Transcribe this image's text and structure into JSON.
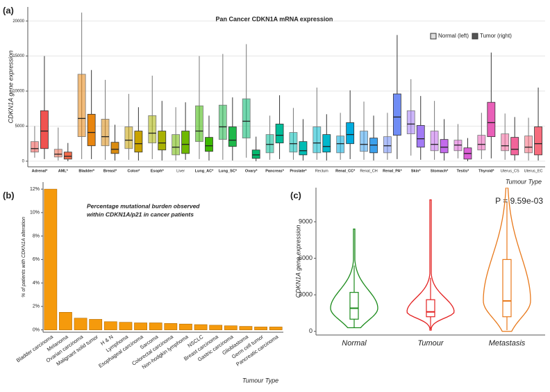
{
  "chart_data": [
    {
      "type": "boxplot",
      "panel": "(a)",
      "title": "Pan Cancer CDKN1A mRNA expression",
      "y_label": "CDKN1A gene expression",
      "x_label": "Tumour Type",
      "categories": [
        "Adrenal*",
        "AML*",
        "Bladder*",
        "Breast*",
        "Colon*",
        "Esoph*",
        "Liver",
        "Lung_AC*",
        "Lung_SC*",
        "Ovary*",
        "Pancreas*",
        "Prostate*",
        "Rectum",
        "Renal_CC*",
        "Renal_CH",
        "Renal_PA*",
        "Skin*",
        "Stomach*",
        "Testis*",
        "Thyroid*",
        "Uterus_CS",
        "Uterus_EC"
      ],
      "category_colors": [
        "#ef5350",
        "#f06a4a",
        "#e8850f",
        "#d98b10",
        "#c9a300",
        "#a9b200",
        "#6fb800",
        "#3cb800",
        "#1eb84a",
        "#00b86e",
        "#00bc98",
        "#00bcb4",
        "#00b8cc",
        "#00acdf",
        "#3ca0ec",
        "#6f8cf5",
        "#a27af5",
        "#c36bec",
        "#dc5fd6",
        "#e95fb8",
        "#f2649a",
        "#f76c7d"
      ],
      "category_label_colors": [
        "#e0201b",
        "#e0201b",
        "#e0201b",
        "#e0201b",
        "#e0201b",
        "#e0201b",
        "#222222",
        "#e0201b",
        "#e0201b",
        "#e0201b",
        "#e0201b",
        "#e0201b",
        "#222222",
        "#e0201b",
        "#222222",
        "#e0201b",
        "#e0201b",
        "#e0201b",
        "#e0201b",
        "#e0201b",
        "#222222",
        "#222222"
      ],
      "series": [
        {
          "name": "Normal (left)",
          "values": [
            [
              500,
              1300,
              1800,
              2800,
              5000
            ],
            [
              100,
              600,
              1000,
              1700,
              4800
            ],
            [
              300,
              3500,
              6100,
              12400,
              21200
            ],
            [
              200,
              2200,
              3500,
              6000,
              11600
            ],
            [
              200,
              1800,
              3000,
              4900,
              9600
            ],
            [
              300,
              2600,
              4000,
              6500,
              12200
            ],
            [
              100,
              900,
              2000,
              3800,
              7700
            ],
            [
              300,
              2800,
              4300,
              7900,
              15000
            ],
            [
              200,
              3100,
              4900,
              8000,
              15300
            ],
            [
              500,
              3300,
              5700,
              8900,
              16700
            ],
            [
              200,
              1200,
              2400,
              3800,
              6500
            ],
            [
              200,
              1300,
              2500,
              4100,
              7600
            ],
            [
              200,
              1200,
              2600,
              4900,
              10500
            ],
            [
              200,
              1200,
              2500,
              3600,
              6900
            ],
            [
              200,
              1400,
              2400,
              4300,
              8500
            ],
            [
              200,
              1200,
              2200,
              3500,
              6900
            ],
            [
              800,
              3900,
              5300,
              7200,
              11700
            ],
            [
              200,
              1500,
              2400,
              4300,
              8600
            ],
            [
              400,
              1500,
              2300,
              3000,
              5300
            ],
            [
              300,
              1600,
              2400,
              3700,
              6900
            ],
            [
              200,
              1500,
              2200,
              3900,
              6800
            ],
            [
              100,
              1200,
              2000,
              3600,
              6200
            ]
          ]
        },
        {
          "name": "Tumor (right)",
          "values": [
            [
              300,
              1800,
              4300,
              7200,
              15000
            ],
            [
              0,
              300,
              700,
              1300,
              2600
            ],
            [
              300,
              2200,
              4100,
              6700,
              13000
            ],
            [
              100,
              1100,
              1700,
              2700,
              5200
            ],
            [
              100,
              1300,
              2500,
              4300,
              7700
            ],
            [
              100,
              1600,
              2600,
              4300,
              8600
            ],
            [
              200,
              1100,
              2400,
              4300,
              8400
            ],
            [
              100,
              1400,
              2200,
              3400,
              6500
            ],
            [
              100,
              2100,
              3000,
              4900,
              9100
            ],
            [
              0,
              400,
              900,
              1600,
              3500
            ],
            [
              300,
              2600,
              3700,
              5300,
              9400
            ],
            [
              100,
              900,
              1500,
              2800,
              6000
            ],
            [
              100,
              1300,
              2100,
              3800,
              6700
            ],
            [
              300,
              2500,
              3800,
              5500,
              10100
            ],
            [
              100,
              1200,
              2300,
              3300,
              6500
            ],
            [
              300,
              3700,
              6300,
              9600,
              18000
            ],
            [
              200,
              2000,
              3200,
              5100,
              9300
            ],
            [
              100,
              1200,
              2000,
              3100,
              6000
            ],
            [
              0,
              300,
              1100,
              1900,
              3300
            ],
            [
              400,
              3500,
              5500,
              8400,
              15500
            ],
            [
              100,
              900,
              1700,
              3400,
              6300
            ],
            [
              100,
              900,
              2500,
              4900,
              10500
            ]
          ]
        }
      ],
      "ylim": [
        -800,
        22000
      ],
      "yticks": [
        0,
        5000,
        10000,
        15000,
        20000
      ],
      "grid": true,
      "legend": "top-right"
    },
    {
      "type": "bar",
      "panel": "(b)",
      "y_label": "% of patients with CDKN1A alteration",
      "x_label": "Tumour Type",
      "annotation": [
        "Percentage mutational burden observed",
        "within CDKN1A/p21 in cancer patients"
      ],
      "categories": [
        "Bladder carcinoma",
        "Melanoma",
        "Ovarian carcinoma",
        "Malignant solid tumor",
        "H & N",
        "Lymphoma",
        "Esophageal carcinoma",
        "Sarcoma",
        "Colorectal carcinoma",
        "Non-hodgkin lymphoma",
        "NSCLC",
        "Breast carcinoma",
        "Gastric carcinoma",
        "Glioblastoma",
        "Germ cell tumor",
        "Pancreatic carcinoma"
      ],
      "values": [
        12.0,
        1.5,
        1.0,
        0.9,
        0.7,
        0.65,
        0.6,
        0.6,
        0.55,
        0.5,
        0.45,
        0.4,
        0.35,
        0.3,
        0.25,
        0.25
      ],
      "color": "#f59a0c",
      "ylim": [
        -0.2,
        12.6
      ],
      "yticks": [
        {
          "value": 0,
          "label": "0%"
        },
        {
          "value": 2,
          "label": "2%"
        },
        {
          "value": 4,
          "label": "4%"
        },
        {
          "value": 6,
          "label": "6%"
        },
        {
          "value": 8,
          "label": "8%"
        },
        {
          "value": 10,
          "label": "10%"
        },
        {
          "value": 12,
          "label": "12%"
        }
      ]
    },
    {
      "type": "violin",
      "panel": "(c)",
      "y_label": "CDKN1A gene expression",
      "annotation": "P = 9.59e-03",
      "categories": [
        "Normal",
        "Tumour",
        "Metastasis"
      ],
      "colors": [
        "#1a8a1a",
        "#e32020",
        "#e8781a"
      ],
      "ranges": [
        [
          300,
          8400
        ],
        [
          100,
          10800
        ],
        [
          0,
          11800
        ]
      ],
      "values": [
        [
          300,
          1000,
          1900,
          3200,
          5400
        ],
        [
          200,
          1200,
          1600,
          2600,
          4400
        ],
        [
          100,
          1200,
          2500,
          5900,
          10600
        ]
      ],
      "ylim": [
        -300,
        11800
      ],
      "yticks": [
        0,
        3000,
        6000,
        9000
      ]
    }
  ]
}
